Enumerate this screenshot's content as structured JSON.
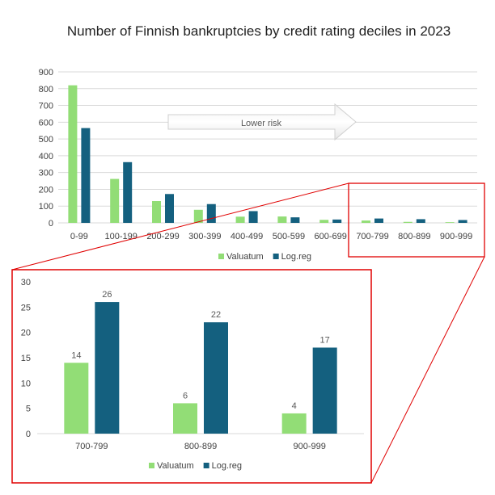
{
  "colors": {
    "valuatum": "#92DD76",
    "logreg": "#14607F",
    "highlight": "#E00000",
    "grid": "#D9D9D9"
  },
  "chart_data": [
    {
      "type": "bar",
      "title": "Number of Finnish bankruptcies by credit rating deciles in 2023",
      "categories": [
        "0-99",
        "100-199",
        "200-299",
        "300-399",
        "400-499",
        "500-599",
        "600-699",
        "700-799",
        "800-899",
        "900-999"
      ],
      "series": [
        {
          "name": "Valuatum",
          "values": [
            820,
            262,
            130,
            78,
            37,
            38,
            18,
            14,
            6,
            4
          ]
        },
        {
          "name": "Log.reg",
          "values": [
            565,
            362,
            172,
            112,
            70,
            33,
            20,
            26,
            22,
            17
          ]
        }
      ],
      "ylim": [
        0,
        900
      ],
      "yticks": [
        0,
        100,
        200,
        300,
        400,
        500,
        600,
        700,
        800,
        900
      ],
      "grid": true,
      "legend": "bottom",
      "annotation": "Lower risk"
    },
    {
      "type": "bar",
      "categories": [
        "700-799",
        "800-899",
        "900-999"
      ],
      "series": [
        {
          "name": "Valuatum",
          "values": [
            14,
            6,
            4
          ]
        },
        {
          "name": "Log.reg",
          "values": [
            26,
            22,
            17
          ]
        }
      ],
      "ylim": [
        0,
        30
      ],
      "yticks": [
        0,
        5,
        10,
        15,
        20,
        25,
        30
      ],
      "grid": false,
      "legend": "bottom",
      "data_labels": true
    }
  ]
}
